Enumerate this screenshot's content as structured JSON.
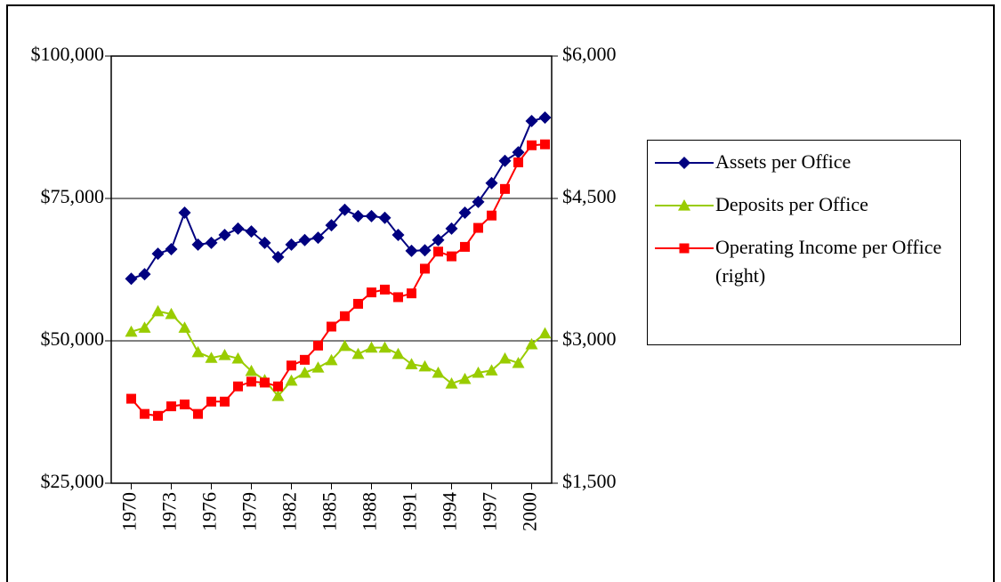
{
  "chart_data": {
    "type": "line",
    "x": [
      1970,
      1971,
      1972,
      1973,
      1974,
      1975,
      1976,
      1977,
      1978,
      1979,
      1980,
      1981,
      1982,
      1983,
      1984,
      1985,
      1986,
      1987,
      1988,
      1989,
      1990,
      1991,
      1992,
      1993,
      1994,
      1995,
      1996,
      1997,
      1998,
      1999,
      2000,
      2001
    ],
    "xlim": [
      1968.5,
      2001.5
    ],
    "xticks": [
      1970,
      1973,
      1976,
      1979,
      1982,
      1985,
      1988,
      1991,
      1994,
      1997,
      2000
    ],
    "ylim": [
      25000,
      100000
    ],
    "yticks": [
      {
        "value": 25000,
        "label": "$25,000"
      },
      {
        "value": 50000,
        "label": "$50,000"
      },
      {
        "value": 75000,
        "label": "$75,000"
      },
      {
        "value": 100000,
        "label": "$100,000"
      }
    ],
    "y2lim": [
      1500,
      6000
    ],
    "y2ticks": [
      {
        "value": 1500,
        "label": "$1,500"
      },
      {
        "value": 3000,
        "label": "$3,000"
      },
      {
        "value": 4500,
        "label": "$4,500"
      },
      {
        "value": 6000,
        "label": "$6,000"
      }
    ],
    "grid": true,
    "legend": "right",
    "series": [
      {
        "name": "Assets per Office",
        "color": "#000080",
        "marker": "diamond",
        "values": [
          60900,
          61700,
          65300,
          66100,
          72500,
          66900,
          67200,
          68600,
          69700,
          69200,
          67200,
          64700,
          66900,
          67700,
          68100,
          70300,
          73000,
          71900,
          71900,
          71600,
          68600,
          65800,
          65900,
          67700,
          69700,
          72500,
          74400,
          77700,
          81600,
          83100,
          88600,
          89200
        ]
      },
      {
        "name": "Deposits per Office",
        "color": "#99cc00",
        "marker": "triangle",
        "values": [
          51600,
          52300,
          55200,
          54700,
          52300,
          48000,
          47000,
          47500,
          46900,
          44700,
          43100,
          40300,
          43000,
          44400,
          45300,
          46600,
          49100,
          47700,
          48800,
          48800,
          47700,
          45900,
          45500,
          44400,
          42500,
          43300,
          44400,
          44800,
          46900,
          46100,
          49400,
          51300
        ]
      },
      {
        "name": "Operating Income per Office (right)",
        "color": "#ff0000",
        "marker": "square",
        "axis": "y2",
        "values": [
          2390,
          2230,
          2210,
          2310,
          2330,
          2230,
          2360,
          2360,
          2520,
          2570,
          2560,
          2520,
          2740,
          2800,
          2950,
          3150,
          3260,
          3390,
          3510,
          3540,
          3460,
          3500,
          3760,
          3940,
          3890,
          3990,
          4190,
          4320,
          4600,
          4880,
          5060,
          5070
        ]
      }
    ]
  }
}
